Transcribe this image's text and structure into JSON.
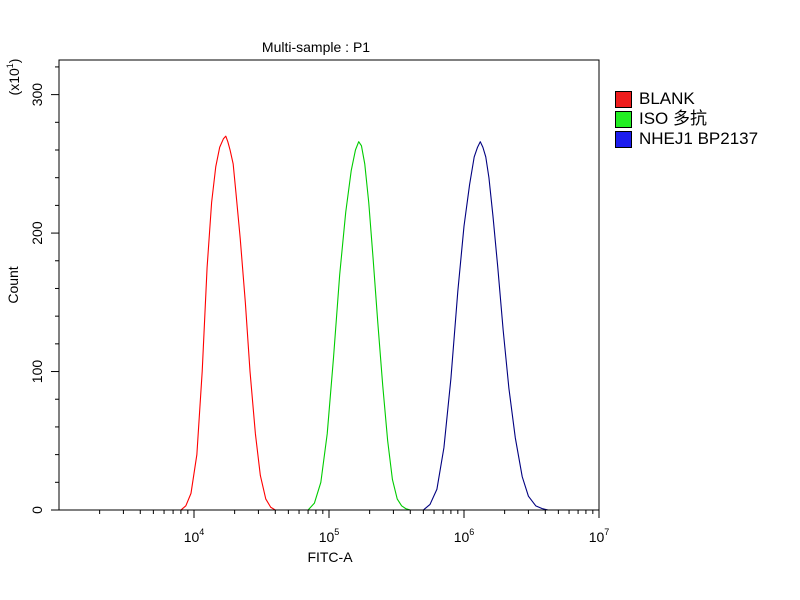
{
  "chart_data": {
    "type": "area",
    "title": "Multi-sample : P1",
    "xlabel": "FITC-A",
    "ylabel": "Count",
    "y_multiplier_label": "(x10",
    "y_multiplier_exp": "1",
    "y_multiplier_close": ")",
    "x_scale": "log",
    "xlim": [
      1000,
      10000000
    ],
    "ylim": [
      0,
      325
    ],
    "x_ticks": [
      {
        "value": 10000,
        "base": "10",
        "exp": "4"
      },
      {
        "value": 100000,
        "base": "10",
        "exp": "5"
      },
      {
        "value": 1000000,
        "base": "10",
        "exp": "6"
      },
      {
        "value": 10000000,
        "base": "10",
        "exp": "7"
      }
    ],
    "y_ticks": [
      {
        "value": 0,
        "label": "0"
      },
      {
        "value": 100,
        "label": "100"
      },
      {
        "value": 200,
        "label": "200"
      },
      {
        "value": 300,
        "label": "300"
      }
    ],
    "grid": false,
    "legend_position": "right",
    "series": [
      {
        "name": "BLANK",
        "color": "#ff0000",
        "legend_color": "#ee1c1c",
        "x": [
          8000,
          8700,
          9500,
          10500,
          11500,
          12500,
          13500,
          14500,
          15500,
          16500,
          17200,
          17800,
          18500,
          19500,
          20500,
          22000,
          24000,
          26000,
          28500,
          31000,
          34000,
          37000,
          40000
        ],
        "y": [
          0,
          3,
          12,
          40,
          100,
          175,
          222,
          248,
          262,
          268,
          270,
          266,
          260,
          250,
          228,
          196,
          150,
          100,
          55,
          25,
          8,
          2,
          0
        ]
      },
      {
        "name": "ISO 多抗",
        "color": "#00cc00",
        "legend_color": "#22ee22",
        "x": [
          70000,
          78000,
          87000,
          97000,
          108000,
          120000,
          133000,
          146000,
          157000,
          166000,
          174000,
          184000,
          197000,
          212000,
          230000,
          250000,
          272000,
          295000,
          320000,
          345000,
          370000,
          400000
        ],
        "y": [
          0,
          5,
          20,
          55,
          110,
          170,
          215,
          245,
          260,
          266,
          263,
          250,
          222,
          182,
          135,
          90,
          50,
          22,
          8,
          3,
          1,
          0
        ]
      },
      {
        "name": "NHEJ1 BP2137",
        "color": "#000080",
        "legend_color": "#1c1cee",
        "x": [
          500000,
          560000,
          630000,
          710000,
          800000,
          900000,
          1000000,
          1100000,
          1190000,
          1260000,
          1320000,
          1380000,
          1450000,
          1530000,
          1640000,
          1780000,
          1950000,
          2150000,
          2400000,
          2700000,
          3000000,
          3400000,
          3800000,
          4200000
        ],
        "y": [
          0,
          4,
          15,
          45,
          95,
          158,
          205,
          235,
          255,
          262,
          266,
          262,
          255,
          240,
          212,
          175,
          130,
          88,
          52,
          24,
          10,
          3,
          1,
          0
        ]
      }
    ]
  }
}
